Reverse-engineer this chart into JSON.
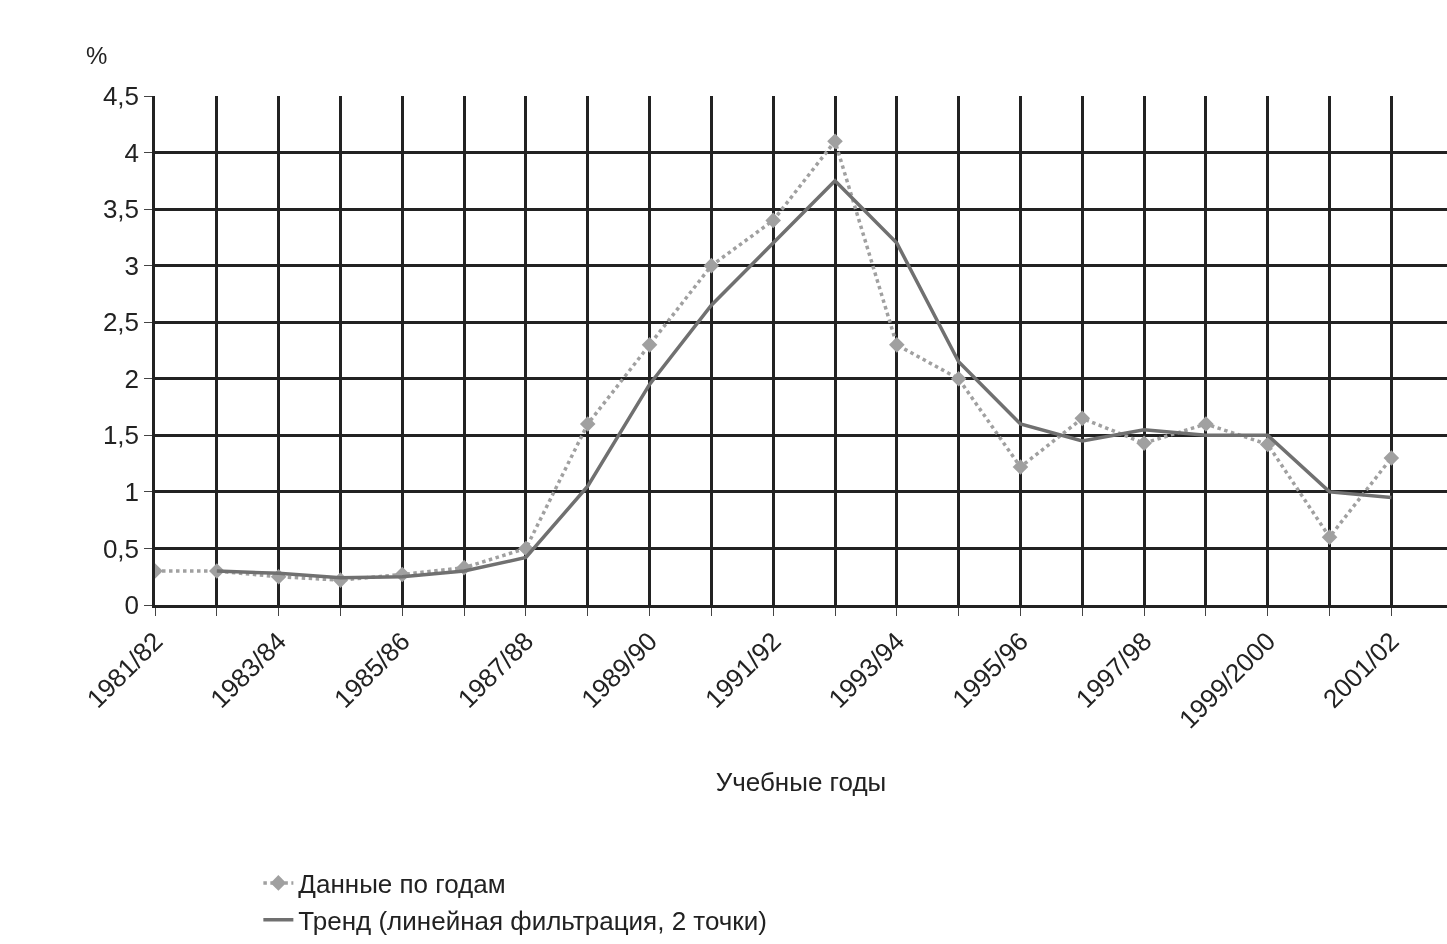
{
  "chart_data": {
    "type": "line",
    "ylabel": "%",
    "xlabel": "Учебные годы",
    "categories": [
      "1981/82",
      null,
      "1983/84",
      null,
      "1985/86",
      null,
      "1987/88",
      null,
      "1989/90",
      null,
      "1991/92",
      null,
      "1993/94",
      null,
      "1995/96",
      null,
      "1997/98",
      null,
      "1999/2000",
      null,
      "2001/02"
    ],
    "series": [
      {
        "name": "Данные по годам",
        "color": "#a0a0a0",
        "marker": "diamond",
        "line_style": "dotted",
        "values": [
          0.3,
          0.3,
          0.25,
          0.22,
          0.27,
          0.33,
          0.5,
          1.6,
          2.3,
          3.0,
          3.4,
          4.1,
          2.3,
          2.0,
          1.22,
          1.65,
          1.43,
          1.6,
          1.42,
          0.6,
          1.3
        ]
      },
      {
        "name": "Тренд (линейная фильтрация, 2 точки)",
        "color": "#707070",
        "marker": "none",
        "line_style": "solid",
        "values": [
          null,
          0.3,
          0.28,
          0.24,
          0.25,
          0.3,
          0.42,
          1.05,
          1.95,
          2.65,
          3.2,
          3.75,
          3.2,
          2.15,
          1.6,
          1.45,
          1.55,
          1.5,
          1.5,
          1.0,
          0.95
        ]
      }
    ],
    "ylim": [
      0,
      4.5
    ],
    "yticks": [
      0,
      {
        "value": 0.5,
        "label": "0,5"
      },
      1,
      {
        "value": 1.5,
        "label": "1,5"
      },
      2,
      {
        "value": 2.5,
        "label": "2,5"
      },
      3,
      {
        "value": 3.5,
        "label": "3,5"
      },
      4,
      {
        "value": 4.5,
        "label": "4,5"
      }
    ],
    "grid": true,
    "legend": "bottom"
  }
}
